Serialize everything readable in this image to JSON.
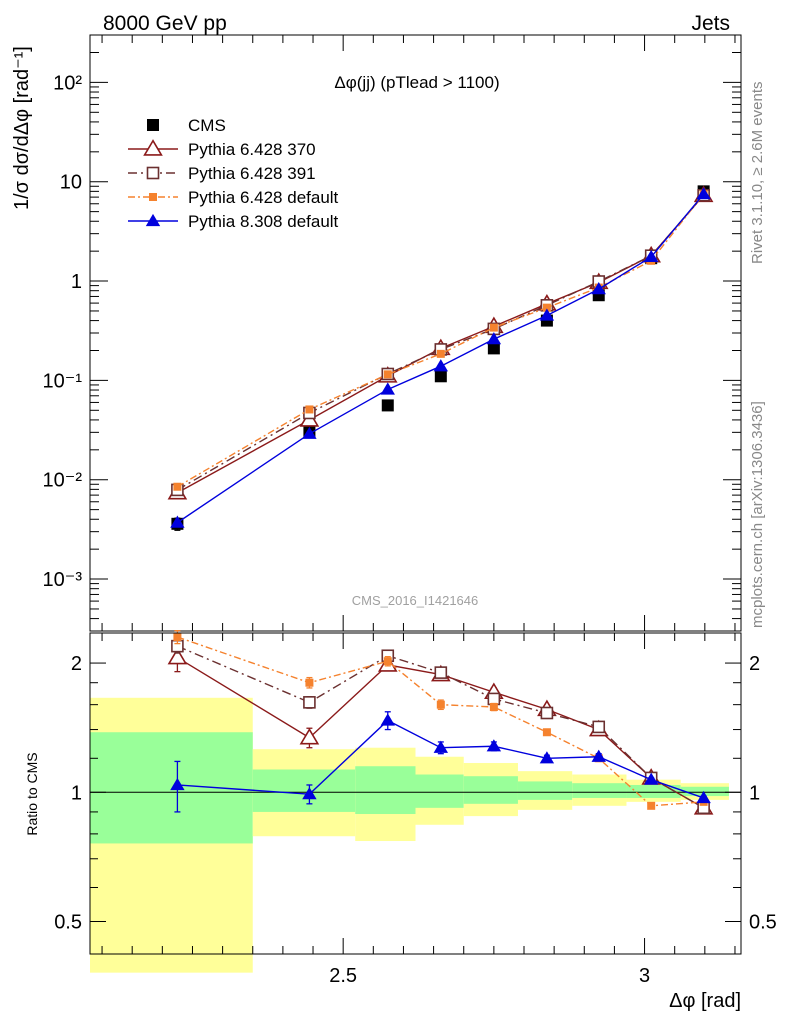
{
  "header": {
    "left": "8000 GeV pp",
    "right": "Jets"
  },
  "side_labels": {
    "rivet": "Rivet 3.1.10, ≥ 2.6M events",
    "mcplots": "mcplots.cern.ch [arXiv:1306.3436]"
  },
  "chart_data": [
    {
      "type": "scatter",
      "title": "Δφ(jj) (pTlead > 1100)",
      "watermark": "CMS_2016_I1421646",
      "ylabel": "1/σ dσ/dΔφ [rad⁻¹]",
      "xlabel": "",
      "xlim": [
        2.08,
        3.16
      ],
      "ylim": [
        0.0003,
        300
      ],
      "yscale": "log",
      "ytick_labels": [
        "10⁻³",
        "10⁻²",
        "10⁻¹",
        "1",
        "10",
        "10²"
      ],
      "legend_position": "top-left",
      "series": [
        {
          "name": "CMS",
          "color": "#000000",
          "marker": "square",
          "x": [
            2.225,
            2.444,
            2.574,
            2.662,
            2.75,
            2.838,
            2.924,
            3.011,
            3.098
          ],
          "y": [
            0.0036,
            0.03,
            0.056,
            0.11,
            0.21,
            0.4,
            0.72,
            1.7,
            8.0
          ],
          "yerr": [
            0.0005,
            0.002,
            0.003,
            0.005,
            0.009,
            0.016,
            0.03,
            0.06,
            0.3
          ]
        },
        {
          "name": "Pythia 6.428 370",
          "color": "#8b1a1a",
          "marker": "open-triangle",
          "x": [
            2.225,
            2.444,
            2.574,
            2.662,
            2.75,
            2.838,
            2.924,
            3.011,
            3.098
          ],
          "y": [
            0.0074,
            0.04,
            0.111,
            0.21,
            0.35,
            0.59,
            0.97,
            1.8,
            7.3
          ]
        },
        {
          "name": "Pythia 6.428 391",
          "color": "#6b3030",
          "marker": "open-square",
          "x": [
            2.225,
            2.444,
            2.574,
            2.662,
            2.75,
            2.838,
            2.924,
            3.011,
            3.098
          ],
          "y": [
            0.0079,
            0.047,
            0.116,
            0.205,
            0.33,
            0.57,
            0.99,
            1.8,
            7.3
          ]
        },
        {
          "name": "Pythia 6.428 default",
          "color": "#f5822e",
          "marker": "filled-square",
          "x": [
            2.225,
            2.444,
            2.574,
            2.662,
            2.75,
            2.838,
            2.924,
            3.011,
            3.098
          ],
          "y": [
            0.0085,
            0.051,
            0.115,
            0.185,
            0.34,
            0.54,
            0.86,
            1.6,
            7.5
          ]
        },
        {
          "name": "Pythia 8.308 default",
          "color": "#0000dd",
          "marker": "filled-triangle",
          "x": [
            2.225,
            2.444,
            2.574,
            2.662,
            2.75,
            2.838,
            2.924,
            3.011,
            3.098
          ],
          "y": [
            0.0037,
            0.029,
            0.081,
            0.139,
            0.26,
            0.45,
            0.83,
            1.75,
            7.5
          ]
        }
      ]
    },
    {
      "type": "scatter",
      "ylabel": "Ratio to CMS",
      "xlabel": "Δφ [rad]",
      "xlim": [
        2.08,
        3.16
      ],
      "ylim": [
        0.42,
        2.35
      ],
      "yscale": "log",
      "ytick_labels": [
        "0.5",
        "1",
        "2"
      ],
      "xtick_labels": [
        "2.5",
        "3"
      ],
      "xticks": [
        2.5,
        3.0
      ],
      "bands": {
        "bins": [
          [
            2.08,
            2.35
          ],
          [
            2.35,
            2.52
          ],
          [
            2.52,
            2.62
          ],
          [
            2.62,
            2.7
          ],
          [
            2.7,
            2.79
          ],
          [
            2.79,
            2.88
          ],
          [
            2.88,
            2.97
          ],
          [
            2.97,
            3.06
          ],
          [
            3.06,
            3.14
          ]
        ],
        "inner": [
          [
            0.76,
            1.38
          ],
          [
            0.9,
            1.13
          ],
          [
            0.89,
            1.15
          ],
          [
            0.92,
            1.1
          ],
          [
            0.94,
            1.09
          ],
          [
            0.96,
            1.06
          ],
          [
            0.97,
            1.05
          ],
          [
            0.97,
            1.04
          ],
          [
            0.98,
            1.03
          ]
        ],
        "outer": [
          [
            0.38,
            1.66
          ],
          [
            0.79,
            1.26
          ],
          [
            0.77,
            1.27
          ],
          [
            0.84,
            1.21
          ],
          [
            0.88,
            1.17
          ],
          [
            0.91,
            1.12
          ],
          [
            0.93,
            1.1
          ],
          [
            0.95,
            1.07
          ],
          [
            0.96,
            1.05
          ]
        ],
        "inner_color": "#99ff99",
        "outer_color": "#ffff99"
      },
      "series": [
        {
          "name": "Pythia 6.428 370",
          "color": "#8b1a1a",
          "marker": "open-triangle",
          "x": [
            2.225,
            2.444,
            2.574,
            2.662,
            2.75,
            2.838,
            2.924,
            3.011,
            3.098
          ],
          "y": [
            2.06,
            1.34,
            1.98,
            1.88,
            1.71,
            1.56,
            1.4,
            1.08,
            0.92
          ],
          "yerr": [
            0.15,
            0.07,
            0.06,
            0.05,
            0.04,
            0.02,
            0.02,
            0.01,
            0.01
          ]
        },
        {
          "name": "Pythia 6.428 391",
          "color": "#6b3030",
          "marker": "open-square",
          "x": [
            2.225,
            2.444,
            2.574,
            2.662,
            2.75,
            2.838,
            2.924,
            3.011,
            3.098
          ],
          "y": [
            2.19,
            1.62,
            2.08,
            1.9,
            1.65,
            1.53,
            1.42,
            1.08,
            0.92
          ],
          "yerr": [
            0.08,
            0.05,
            0.05,
            0.04,
            0.03,
            0.02,
            0.02,
            0.01,
            0.01
          ]
        },
        {
          "name": "Pythia 6.428 default",
          "color": "#f5822e",
          "marker": "filled-square",
          "x": [
            2.225,
            2.444,
            2.574,
            2.662,
            2.75,
            2.838,
            2.924,
            3.011,
            3.098
          ],
          "y": [
            2.3,
            1.8,
            2.02,
            1.6,
            1.58,
            1.38,
            1.2,
            0.93,
            0.95
          ],
          "yerr": [
            0.08,
            0.05,
            0.05,
            0.04,
            0.03,
            0.02,
            0.02,
            0.01,
            0.01
          ]
        },
        {
          "name": "Pythia 8.308 default",
          "color": "#0000dd",
          "marker": "filled-triangle",
          "x": [
            2.225,
            2.444,
            2.574,
            2.662,
            2.75,
            2.838,
            2.924,
            3.011,
            3.098
          ],
          "y": [
            1.04,
            0.99,
            1.47,
            1.27,
            1.28,
            1.2,
            1.21,
            1.07,
            0.97
          ],
          "yerr": [
            0.14,
            0.05,
            0.07,
            0.04,
            0.03,
            0.02,
            0.02,
            0.01,
            0.01
          ]
        }
      ]
    }
  ]
}
